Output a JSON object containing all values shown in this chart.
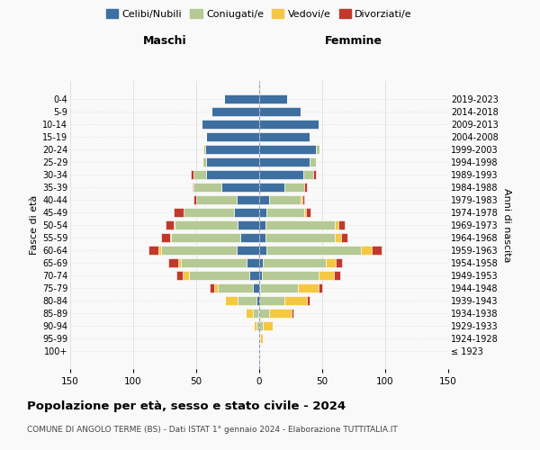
{
  "age_groups": [
    "100+",
    "95-99",
    "90-94",
    "85-89",
    "80-84",
    "75-79",
    "70-74",
    "65-69",
    "60-64",
    "55-59",
    "50-54",
    "45-49",
    "40-44",
    "35-39",
    "30-34",
    "25-29",
    "20-24",
    "15-19",
    "10-14",
    "5-9",
    "0-4"
  ],
  "birth_years": [
    "≤ 1923",
    "1924-1928",
    "1929-1933",
    "1934-1938",
    "1939-1943",
    "1944-1948",
    "1949-1953",
    "1954-1958",
    "1959-1963",
    "1964-1968",
    "1969-1973",
    "1974-1978",
    "1979-1983",
    "1984-1988",
    "1989-1993",
    "1994-1998",
    "1999-2003",
    "2004-2008",
    "2009-2013",
    "2014-2018",
    "2019-2023"
  ],
  "colors": {
    "celibi": "#3d6fa0",
    "coniugati": "#b5c994",
    "vedovi": "#f5c842",
    "divorziati": "#c0392b"
  },
  "males": {
    "celibi": [
      0,
      0,
      0,
      1,
      2,
      5,
      8,
      10,
      18,
      15,
      17,
      20,
      18,
      30,
      42,
      42,
      43,
      42,
      46,
      38,
      28
    ],
    "coniugati": [
      0,
      0,
      2,
      4,
      15,
      28,
      48,
      52,
      60,
      55,
      50,
      40,
      32,
      22,
      10,
      3,
      1,
      0,
      0,
      0,
      0
    ],
    "vedovi": [
      0,
      0,
      2,
      6,
      10,
      3,
      5,
      2,
      2,
      1,
      1,
      0,
      0,
      0,
      0,
      0,
      1,
      0,
      0,
      0,
      0
    ],
    "divorziati": [
      0,
      0,
      0,
      0,
      0,
      3,
      5,
      8,
      8,
      7,
      6,
      8,
      2,
      1,
      2,
      0,
      0,
      0,
      0,
      0,
      0
    ]
  },
  "females": {
    "nubili": [
      0,
      0,
      0,
      0,
      0,
      1,
      2,
      3,
      6,
      5,
      5,
      6,
      8,
      20,
      35,
      40,
      45,
      40,
      47,
      33,
      22
    ],
    "coniugate": [
      0,
      1,
      3,
      8,
      20,
      30,
      45,
      50,
      75,
      55,
      55,
      30,
      25,
      16,
      8,
      5,
      3,
      0,
      0,
      0,
      0
    ],
    "vedove": [
      0,
      2,
      8,
      18,
      18,
      16,
      12,
      8,
      8,
      5,
      3,
      1,
      1,
      0,
      0,
      0,
      0,
      0,
      0,
      0,
      0
    ],
    "divorziate": [
      0,
      0,
      0,
      1,
      2,
      3,
      5,
      5,
      8,
      5,
      5,
      4,
      2,
      2,
      2,
      0,
      0,
      0,
      0,
      0,
      0
    ]
  },
  "title": "Popolazione per età, sesso e stato civile - 2024",
  "subtitle": "COMUNE DI ANGOLO TERME (BS) - Dati ISTAT 1° gennaio 2024 - Elaborazione TUTTITALIA.IT",
  "xlabel_left": "Maschi",
  "xlabel_right": "Femmine",
  "ylabel_left": "Fasce di età",
  "ylabel_right": "Anni di nascita",
  "legend_labels": [
    "Celibi/Nubili",
    "Coniugati/e",
    "Vedovi/e",
    "Divorziati/e"
  ],
  "xlim": 150,
  "bg_color": "#f9f9f9",
  "grid_color": "#cccccc"
}
